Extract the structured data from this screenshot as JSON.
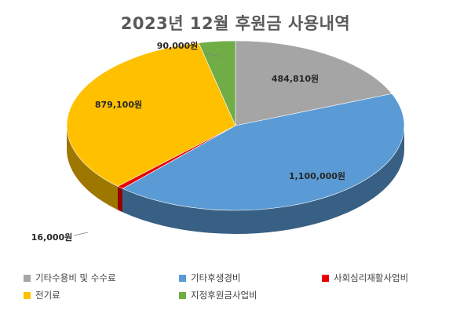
{
  "chart_data": {
    "type": "pie",
    "title": "2023년 12월 후원금 사용내역",
    "unit": "원",
    "slices": [
      {
        "name": "기타수용비 및 수수료",
        "value": 484810,
        "label": "484,810원",
        "color": "#a5a5a5"
      },
      {
        "name": "기타후생경비",
        "value": 1100000,
        "label": "1,100,000원",
        "color": "#5b9bd5"
      },
      {
        "name": "사회심리재활사업비",
        "value": 16000,
        "label": "16,000원",
        "color": "#e80000"
      },
      {
        "name": "전기료",
        "value": 879100,
        "label": "879,100원",
        "color": "#ffc000"
      },
      {
        "name": "지정후원금사업비",
        "value": 90000,
        "label": "90,000원",
        "color": "#70ad47"
      }
    ],
    "legend": {
      "position": "bottom"
    },
    "style": "3d"
  }
}
